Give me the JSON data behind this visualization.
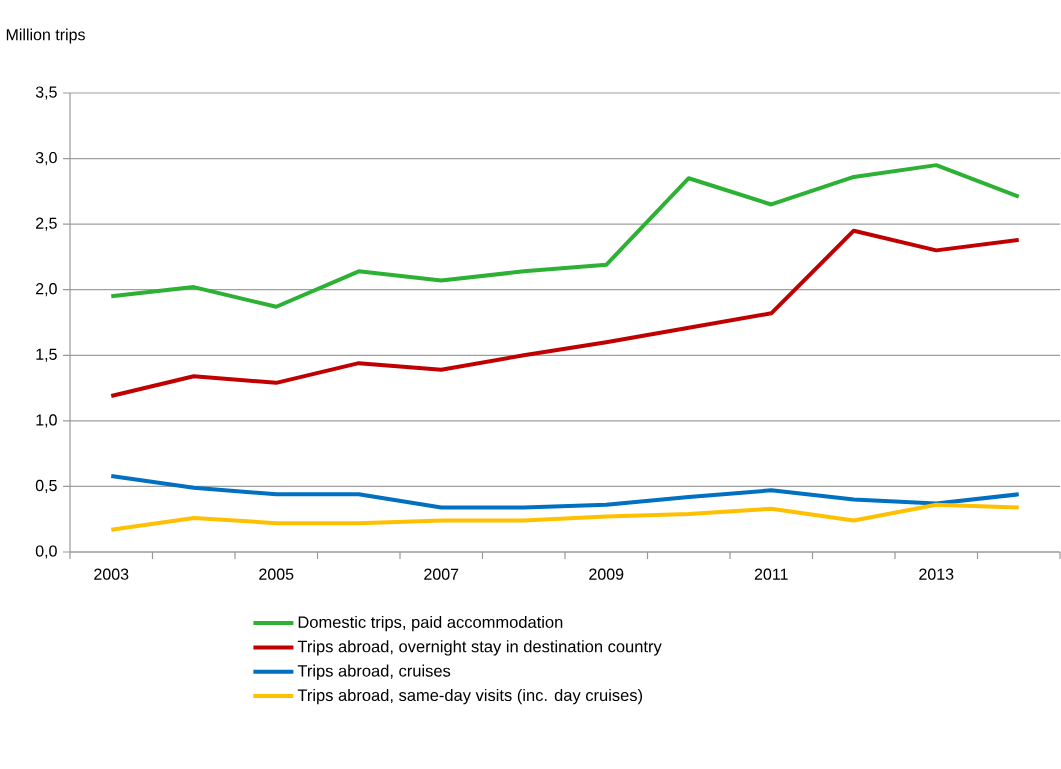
{
  "chart_data": {
    "type": "line",
    "ylabel": "Million trips",
    "categories": [
      "2003",
      null,
      "2005",
      null,
      "2007",
      null,
      "2009",
      null,
      "2011",
      null,
      "2013",
      null
    ],
    "series": [
      {
        "name": "Domestic trips, paid accommodation",
        "color": "#2db135",
        "values": [
          1.95,
          2.02,
          1.87,
          2.14,
          2.07,
          2.14,
          2.19,
          2.85,
          2.65,
          2.86,
          2.95,
          2.71
        ]
      },
      {
        "name": "Trips abroad, overnight stay in destination country",
        "color": "#c00000",
        "values": [
          1.19,
          1.34,
          1.29,
          1.44,
          1.39,
          1.5,
          1.6,
          1.71,
          1.82,
          2.45,
          2.3,
          2.38
        ]
      },
      {
        "name": "Trips abroad, cruises",
        "color": "#0070c0",
        "values": [
          0.58,
          0.49,
          0.44,
          0.44,
          0.34,
          0.34,
          0.36,
          0.42,
          0.47,
          0.4,
          0.37,
          0.44
        ]
      },
      {
        "name": "Trips abroad, same-day visits (inc. day cruises)",
        "color": "#ffc000",
        "values": [
          0.17,
          0.26,
          0.22,
          0.22,
          0.24,
          0.24,
          0.27,
          0.29,
          0.33,
          0.24,
          0.36,
          0.34
        ]
      }
    ],
    "ylim": [
      0,
      3.5
    ],
    "yticks": [
      {
        "value": 0,
        "label": "0,0"
      },
      {
        "value": 0.5,
        "label": "0,5"
      },
      {
        "value": 1,
        "label": "1,0"
      },
      {
        "value": 1.5,
        "label": "1,5"
      },
      {
        "value": 2,
        "label": "2,0"
      },
      {
        "value": 2.5,
        "label": "2,5"
      },
      {
        "value": 3,
        "label": "3,0"
      },
      {
        "value": 3.5,
        "label": "3,5"
      }
    ],
    "grid": "y",
    "legend": "bottom",
    "marker": "none",
    "line_style": "solid"
  }
}
